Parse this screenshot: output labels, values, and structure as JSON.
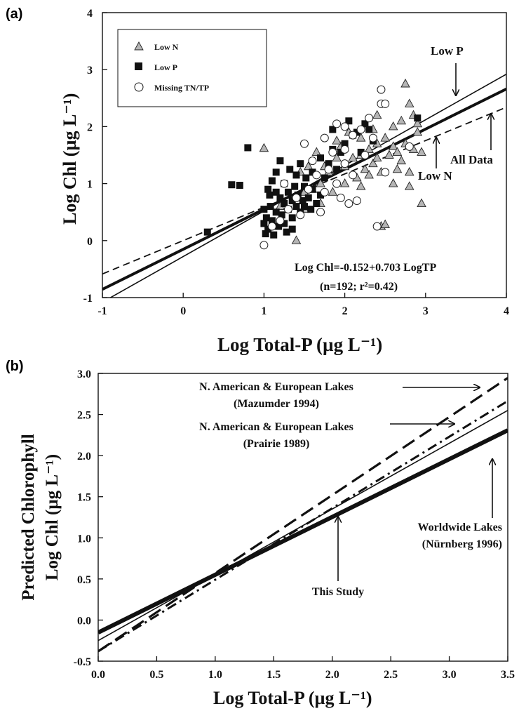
{
  "chart_data": [
    {
      "panel_label": "(a)",
      "type": "scatter",
      "xlabel": "Log  Total-P (µg L⁻¹)",
      "ylabel": "Log Chl (µg L⁻¹)",
      "xlim": [
        -1,
        4
      ],
      "ylim": [
        -1,
        4
      ],
      "x_ticks": [
        "-1",
        "0",
        "1",
        "2",
        "3",
        "4"
      ],
      "y_ticks": [
        "-1",
        "0",
        "1",
        "2",
        "3",
        "4"
      ],
      "grid": false,
      "legend_position": "top-left",
      "legend": [
        {
          "name": "Low N",
          "marker": "triangle"
        },
        {
          "name": "Low P",
          "marker": "square"
        },
        {
          "name": "Missing TN/TP",
          "marker": "circle"
        }
      ],
      "series": [
        {
          "name": "Low N",
          "marker": "triangle",
          "color": "#b5b5b5",
          "points": [
            [
              1.0,
              1.62
            ],
            [
              1.2,
              0.6
            ],
            [
              1.4,
              0.0
            ],
            [
              1.45,
              1.2
            ],
            [
              1.5,
              0.55
            ],
            [
              1.55,
              1.3
            ],
            [
              1.6,
              0.9
            ],
            [
              1.65,
              1.55
            ],
            [
              1.7,
              1.0
            ],
            [
              1.75,
              1.3
            ],
            [
              1.8,
              1.2
            ],
            [
              1.85,
              0.85
            ],
            [
              1.9,
              1.45
            ],
            [
              1.95,
              1.65
            ],
            [
              2.0,
              1.0
            ],
            [
              2.0,
              1.3
            ],
            [
              2.05,
              1.9
            ],
            [
              2.1,
              1.45
            ],
            [
              2.15,
              1.1
            ],
            [
              2.2,
              1.5
            ],
            [
              2.2,
              1.8
            ],
            [
              2.25,
              1.25
            ],
            [
              2.3,
              1.6
            ],
            [
              2.3,
              1.15
            ],
            [
              2.35,
              1.95
            ],
            [
              2.35,
              1.35
            ],
            [
              2.4,
              1.7
            ],
            [
              2.4,
              1.45
            ],
            [
              2.45,
              0.25
            ],
            [
              2.45,
              1.2
            ],
            [
              2.5,
              0.28
            ],
            [
              2.5,
              1.8
            ],
            [
              2.55,
              1.5
            ],
            [
              2.6,
              2.0
            ],
            [
              2.6,
              1.65
            ],
            [
              2.65,
              1.55
            ],
            [
              2.65,
              1.25
            ],
            [
              2.7,
              2.1
            ],
            [
              2.7,
              1.4
            ],
            [
              2.75,
              2.75
            ],
            [
              2.75,
              1.7
            ],
            [
              2.8,
              2.4
            ],
            [
              2.8,
              1.2
            ],
            [
              2.85,
              2.2
            ],
            [
              2.85,
              1.6
            ],
            [
              2.9,
              2.05
            ],
            [
              2.9,
              1.9
            ],
            [
              2.95,
              0.65
            ],
            [
              2.95,
              1.55
            ],
            [
              2.8,
              0.95
            ],
            [
              2.6,
              1.0
            ],
            [
              2.4,
              2.2
            ],
            [
              2.2,
              0.95
            ],
            [
              1.9,
              1.75
            ],
            [
              1.7,
              0.65
            ],
            [
              1.5,
              0.85
            ]
          ]
        },
        {
          "name": "Low P",
          "marker": "square",
          "color": "#111111",
          "points": [
            [
              0.3,
              0.15
            ],
            [
              0.6,
              0.98
            ],
            [
              0.7,
              0.97
            ],
            [
              0.8,
              1.63
            ],
            [
              1.0,
              0.55
            ],
            [
              1.0,
              0.3
            ],
            [
              1.02,
              0.12
            ],
            [
              1.03,
              0.4
            ],
            [
              1.05,
              0.2
            ],
            [
              1.07,
              0.8
            ],
            [
              1.08,
              0.6
            ],
            [
              1.1,
              0.35
            ],
            [
              1.1,
              1.05
            ],
            [
              1.12,
              0.1
            ],
            [
              1.15,
              0.5
            ],
            [
              1.15,
              1.2
            ],
            [
              1.18,
              0.25
            ],
            [
              1.2,
              0.75
            ],
            [
              1.2,
              1.4
            ],
            [
              1.22,
              0.45
            ],
            [
              1.25,
              0.65
            ],
            [
              1.25,
              1.0
            ],
            [
              1.28,
              0.15
            ],
            [
              1.3,
              0.85
            ],
            [
              1.3,
              0.55
            ],
            [
              1.32,
              1.25
            ],
            [
              1.35,
              0.7
            ],
            [
              1.35,
              0.4
            ],
            [
              1.38,
              0.95
            ],
            [
              1.4,
              0.6
            ],
            [
              1.4,
              1.15
            ],
            [
              1.42,
              0.8
            ],
            [
              1.45,
              0.5
            ],
            [
              1.45,
              1.35
            ],
            [
              1.48,
              0.7
            ],
            [
              1.5,
              0.95
            ],
            [
              1.5,
              0.6
            ],
            [
              1.52,
              1.1
            ],
            [
              1.55,
              0.75
            ],
            [
              1.58,
              0.55
            ],
            [
              1.6,
              0.9
            ],
            [
              1.6,
              1.2
            ],
            [
              1.65,
              0.65
            ],
            [
              1.7,
              0.8
            ],
            [
              1.7,
              1.45
            ],
            [
              1.75,
              1.1
            ],
            [
              1.8,
              1.35
            ],
            [
              1.85,
              1.6
            ],
            [
              1.85,
              1.95
            ],
            [
              1.9,
              1.25
            ],
            [
              1.95,
              1.55
            ],
            [
              2.0,
              1.7
            ],
            [
              2.05,
              2.1
            ],
            [
              2.1,
              1.85
            ],
            [
              2.15,
              1.9
            ],
            [
              2.2,
              1.55
            ],
            [
              2.25,
              2.05
            ],
            [
              2.3,
              1.95
            ],
            [
              2.35,
              1.75
            ],
            [
              2.9,
              2.15
            ],
            [
              1.05,
              0.9
            ],
            [
              1.15,
              0.85
            ],
            [
              1.25,
              0.3
            ],
            [
              1.35,
              0.2
            ]
          ]
        },
        {
          "name": "Missing TN/TP",
          "marker": "circle",
          "color": "#ffffff",
          "points": [
            [
              1.0,
              -0.08
            ],
            [
              1.1,
              0.25
            ],
            [
              1.2,
              0.35
            ],
            [
              1.25,
              1.0
            ],
            [
              1.3,
              0.55
            ],
            [
              1.4,
              0.75
            ],
            [
              1.5,
              1.7
            ],
            [
              1.55,
              0.9
            ],
            [
              1.6,
              1.4
            ],
            [
              1.65,
              1.15
            ],
            [
              1.7,
              0.5
            ],
            [
              1.75,
              0.85
            ],
            [
              1.8,
              1.25
            ],
            [
              1.85,
              1.55
            ],
            [
              1.9,
              2.05
            ],
            [
              1.9,
              1.0
            ],
            [
              1.95,
              0.75
            ],
            [
              2.0,
              1.35
            ],
            [
              2.0,
              1.6
            ],
            [
              2.05,
              0.65
            ],
            [
              2.1,
              1.15
            ],
            [
              2.1,
              1.85
            ],
            [
              2.15,
              0.7
            ],
            [
              2.2,
              1.95
            ],
            [
              2.25,
              1.5
            ],
            [
              2.3,
              2.15
            ],
            [
              2.35,
              1.8
            ],
            [
              2.4,
              0.25
            ],
            [
              2.45,
              2.4
            ],
            [
              2.45,
              2.65
            ],
            [
              2.5,
              2.4
            ],
            [
              2.5,
              1.2
            ],
            [
              2.8,
              1.65
            ],
            [
              1.45,
              0.45
            ],
            [
              1.75,
              1.8
            ],
            [
              2.0,
              2.0
            ]
          ]
        }
      ],
      "lines": [
        {
          "name": "All Data",
          "style": "thick",
          "intercept": -0.152,
          "slope": 0.703
        },
        {
          "name": "Low P",
          "style": "thin",
          "intercept": -0.28,
          "slope": 0.8
        },
        {
          "name": "Low N",
          "style": "dashed",
          "intercept": 0.0,
          "slope": 0.585
        }
      ],
      "annotations": {
        "low_p": "Low P",
        "all_data": "All Data",
        "low_n": "Low N",
        "equation": "Log Chl=-0.152+0.703 LogTP",
        "stats": "(n=192; r²=0.42)"
      }
    },
    {
      "panel_label": "(b)",
      "type": "line",
      "xlabel": "Log Total-P (µg L⁻¹)",
      "ylabel": "Log Chl (µg L⁻¹)",
      "ylabel_top": "Predicted Chlorophyll",
      "xlim": [
        0,
        3.5
      ],
      "ylim": [
        -0.5,
        3.0
      ],
      "x_ticks": [
        "0.0",
        "0.5",
        "1.0",
        "1.5",
        "2.0",
        "2.5",
        "3.0",
        "3.5"
      ],
      "y_ticks": [
        "-0.5",
        "0.0",
        "0.5",
        "1.0",
        "1.5",
        "2.0",
        "2.5",
        "3.0"
      ],
      "grid": false,
      "series": [
        {
          "name": "N. American & European Lakes (Mazumder 1994)",
          "style": "longdash",
          "intercept": -0.38,
          "slope": 0.95
        },
        {
          "name": "Worldwide Lakes (Nürnberg 1996)",
          "style": "dashdot",
          "intercept": -0.38,
          "slope": 0.87
        },
        {
          "name": "N. American & European Lakes (Prairie 1989)",
          "style": "thin",
          "intercept": -0.25,
          "slope": 0.8
        },
        {
          "name": "This Study",
          "style": "thick",
          "intercept": -0.152,
          "slope": 0.703
        }
      ],
      "annotations": {
        "mazumder_1": "N. American & European Lakes",
        "mazumder_2": "(Mazumder 1994)",
        "prairie_1": "N. American & European Lakes",
        "prairie_2": "(Prairie 1989)",
        "worldwide_1": "Worldwide Lakes",
        "worldwide_2": "(Nürnberg 1996)",
        "this_study": "This Study"
      }
    }
  ]
}
